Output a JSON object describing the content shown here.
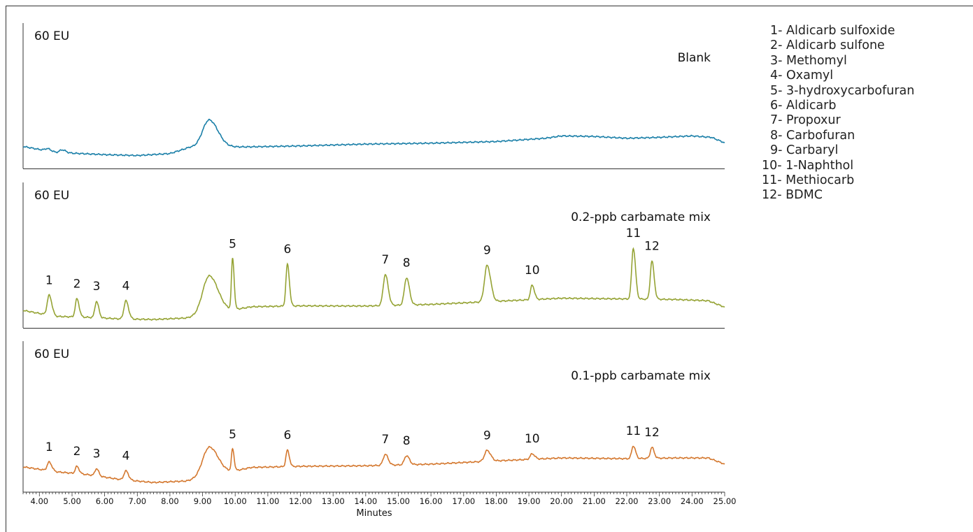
{
  "chart_data": {
    "type": "line",
    "xlabel": "Minutes",
    "xlim": [
      3.5,
      25.0
    ],
    "x_ticks": [
      "4.00",
      "5.00",
      "6.00",
      "7.00",
      "8.00",
      "9.00",
      "10.00",
      "11.00",
      "12.00",
      "13.00",
      "14.00",
      "15.00",
      "16.00",
      "17.00",
      "18.00",
      "19.00",
      "20.00",
      "21.00",
      "22.00",
      "23.00",
      "24.00",
      "25.00"
    ],
    "y_unit": "EU",
    "y_scale": 60,
    "series": [
      {
        "name": "Blank",
        "scale_label": "60 EU",
        "color": "#1a7fa8",
        "baseline": [
          [
            3.5,
            7.5
          ],
          [
            4.5,
            4.2
          ],
          [
            6.0,
            3.0
          ],
          [
            7.0,
            2.5
          ],
          [
            8.0,
            3.6
          ],
          [
            8.6,
            7.0
          ],
          [
            10.5,
            7.3
          ],
          [
            12.0,
            7.8
          ],
          [
            14.0,
            8.8
          ],
          [
            16.0,
            9.3
          ],
          [
            18.0,
            10.2
          ],
          [
            19.5,
            12.0
          ],
          [
            20.0,
            13.3
          ],
          [
            21.0,
            13.0
          ],
          [
            22.0,
            12.0
          ],
          [
            23.0,
            12.5
          ],
          [
            24.0,
            13.3
          ],
          [
            24.6,
            12.5
          ],
          [
            25.0,
            9.5
          ]
        ],
        "peaks": [
          {
            "label": "",
            "rt": 4.25,
            "height": 1.3,
            "width": 0.08
          },
          {
            "label": "",
            "rt": 4.7,
            "height": 1.6,
            "width": 0.08
          },
          {
            "label": "",
            "rt": 9.2,
            "height": 15.0,
            "width": 0.2
          }
        ]
      },
      {
        "name": "0.2-ppb carbamate mix",
        "scale_label": "60 EU",
        "color": "#95a334",
        "baseline": [
          [
            3.5,
            5.0
          ],
          [
            4.5,
            1.7
          ],
          [
            5.5,
            1.2
          ],
          [
            6.5,
            0.3
          ],
          [
            7.5,
            0.0
          ],
          [
            8.5,
            0.8
          ],
          [
            10.5,
            7.0
          ],
          [
            12.0,
            7.5
          ],
          [
            14.0,
            7.4
          ],
          [
            16.0,
            8.3
          ],
          [
            18.0,
            10.0
          ],
          [
            20.0,
            11.7
          ],
          [
            22.0,
            11.3
          ],
          [
            23.5,
            11.0
          ],
          [
            24.5,
            10.3
          ],
          [
            25.0,
            6.8
          ]
        ],
        "peaks": [
          {
            "label": "1",
            "rt": 4.3,
            "height": 11.0,
            "width": 0.06
          },
          {
            "label": "2",
            "rt": 5.15,
            "height": 10.0,
            "width": 0.05
          },
          {
            "label": "3",
            "rt": 5.75,
            "height": 9.0,
            "width": 0.05
          },
          {
            "label": "4",
            "rt": 6.65,
            "height": 10.0,
            "width": 0.06
          },
          {
            "label": "",
            "rt": 9.2,
            "height": 21.0,
            "width": 0.2
          },
          {
            "label": "5",
            "rt": 9.92,
            "height": 28.0,
            "width": 0.035
          },
          {
            "label": "6",
            "rt": 11.6,
            "height": 23.0,
            "width": 0.045
          },
          {
            "label": "7",
            "rt": 14.6,
            "height": 17.0,
            "width": 0.065
          },
          {
            "label": "8",
            "rt": 15.25,
            "height": 15.0,
            "width": 0.065
          },
          {
            "label": "9",
            "rt": 17.72,
            "height": 20.0,
            "width": 0.08
          },
          {
            "label": "10",
            "rt": 19.1,
            "height": 8.0,
            "width": 0.05
          },
          {
            "label": "11",
            "rt": 22.2,
            "height": 28.0,
            "width": 0.05
          },
          {
            "label": "12",
            "rt": 22.77,
            "height": 21.0,
            "width": 0.05
          }
        ]
      },
      {
        "name": "0.1-ppb carbamate mix",
        "scale_label": "60 EU",
        "color": "#d4782f",
        "baseline": [
          [
            3.5,
            9.3
          ],
          [
            4.5,
            6.6
          ],
          [
            5.5,
            5.0
          ],
          [
            6.5,
            2.3
          ],
          [
            7.5,
            0.7
          ],
          [
            8.5,
            1.5
          ],
          [
            10.5,
            9.0
          ],
          [
            12.0,
            9.6
          ],
          [
            14.0,
            9.9
          ],
          [
            16.0,
            10.8
          ],
          [
            18.0,
            12.6
          ],
          [
            20.0,
            14.2
          ],
          [
            22.0,
            13.8
          ],
          [
            23.5,
            14.2
          ],
          [
            24.5,
            14.2
          ],
          [
            25.0,
            10.8
          ]
        ],
        "peaks": [
          {
            "label": "1",
            "rt": 4.3,
            "height": 4.8,
            "width": 0.06
          },
          {
            "label": "2",
            "rt": 5.15,
            "height": 4.0,
            "width": 0.05
          },
          {
            "label": "3",
            "rt": 5.75,
            "height": 4.0,
            "width": 0.05
          },
          {
            "label": "4",
            "rt": 6.65,
            "height": 5.0,
            "width": 0.06
          },
          {
            "label": "",
            "rt": 9.2,
            "height": 16.0,
            "width": 0.2
          },
          {
            "label": "5",
            "rt": 9.92,
            "height": 12.0,
            "width": 0.035
          },
          {
            "label": "6",
            "rt": 11.6,
            "height": 9.0,
            "width": 0.045
          },
          {
            "label": "7",
            "rt": 14.6,
            "height": 6.0,
            "width": 0.065
          },
          {
            "label": "8",
            "rt": 15.25,
            "height": 5.0,
            "width": 0.065
          },
          {
            "label": "9",
            "rt": 17.72,
            "height": 6.0,
            "width": 0.08
          },
          {
            "label": "10",
            "rt": 19.1,
            "height": 3.0,
            "width": 0.06
          },
          {
            "label": "11",
            "rt": 22.2,
            "height": 7.0,
            "width": 0.05
          },
          {
            "label": "12",
            "rt": 22.77,
            "height": 6.0,
            "width": 0.05
          }
        ]
      }
    ],
    "compound_legend": [
      "1- Aldicarb sulfoxide",
      "2- Aldicarb sulfone",
      "3- Methomyl",
      "4- Oxamyl",
      "5- 3-hydroxycarbofuran",
      "6- Aldicarb",
      "7- Propoxur",
      "8- Carbofuran",
      "9- Carbaryl",
      "10- 1-Naphthol",
      "11- Methiocarb",
      "12- BDMC"
    ]
  }
}
